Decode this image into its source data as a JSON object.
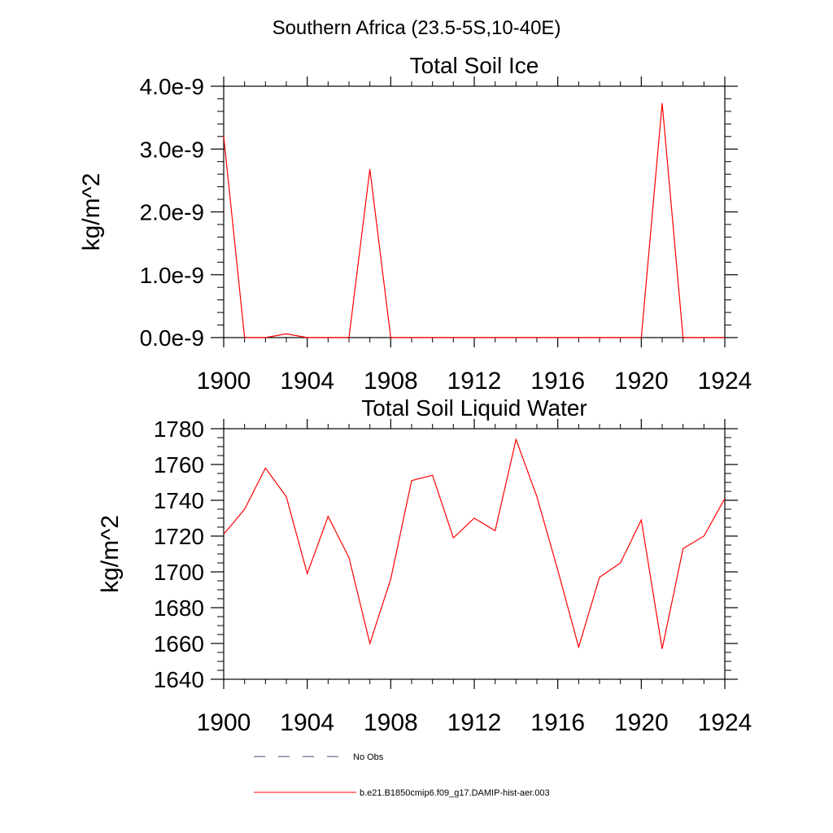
{
  "figure": {
    "title": "Southern Africa (23.5-5S,10-40E)"
  },
  "colors": {
    "model": "#ff0000",
    "obs": "#404080",
    "axis": "#000000"
  },
  "legend": {
    "obs_label": "No Obs",
    "model_label": "b.e21.B1850cmip6.f09_g17.DAMIP-hist-aer.003"
  },
  "chart_data": [
    {
      "type": "line",
      "title": "Total Soil Ice",
      "xlabel": "",
      "ylabel": "kg/m^2",
      "xlim": [
        1900,
        1924
      ],
      "ylim": [
        0,
        4e-09
      ],
      "xticks": [
        1900,
        1904,
        1908,
        1912,
        1916,
        1920,
        1924
      ],
      "yticks": [
        0,
        1e-09,
        2e-09,
        3e-09,
        4e-09
      ],
      "yticklabels": [
        "0.0e-9",
        "1.0e-9",
        "2.0e-9",
        "3.0e-9",
        "4.0e-9"
      ],
      "x": [
        1900,
        1901,
        1902,
        1903,
        1904,
        1905,
        1906,
        1907,
        1908,
        1909,
        1910,
        1911,
        1912,
        1913,
        1914,
        1915,
        1916,
        1917,
        1918,
        1919,
        1920,
        1921,
        1922,
        1923,
        1924
      ],
      "series": [
        {
          "name": "b.e21.B1850cmip6.f09_g17.DAMIP-hist-aer.003",
          "values": [
            3.2e-09,
            0,
            0,
            6e-11,
            0,
            0,
            0,
            2.68e-09,
            0,
            0,
            0,
            0,
            0,
            0,
            0,
            0,
            0,
            0,
            0,
            0,
            0,
            3.73e-09,
            0,
            0,
            0
          ]
        }
      ]
    },
    {
      "type": "line",
      "title": "Total Soil Liquid Water",
      "xlabel": "",
      "ylabel": "kg/m^2",
      "xlim": [
        1900,
        1924
      ],
      "ylim": [
        1640,
        1780
      ],
      "xticks": [
        1900,
        1904,
        1908,
        1912,
        1916,
        1920,
        1924
      ],
      "yticks": [
        1640,
        1660,
        1680,
        1700,
        1720,
        1740,
        1760,
        1780
      ],
      "yticklabels": [
        "1640",
        "1660",
        "1680",
        "1700",
        "1720",
        "1740",
        "1760",
        "1780"
      ],
      "x": [
        1900,
        1901,
        1902,
        1903,
        1904,
        1905,
        1906,
        1907,
        1908,
        1909,
        1910,
        1911,
        1912,
        1913,
        1914,
        1915,
        1916,
        1917,
        1918,
        1919,
        1920,
        1921,
        1922,
        1923,
        1924
      ],
      "series": [
        {
          "name": "b.e21.B1850cmip6.f09_g17.DAMIP-hist-aer.003",
          "values": [
            1721,
            1735,
            1758,
            1742,
            1699,
            1731,
            1708,
            1660,
            1696,
            1751,
            1754,
            1719,
            1730,
            1723,
            1774,
            1742,
            1701,
            1658,
            1697,
            1705,
            1729,
            1657,
            1713,
            1720,
            1741
          ]
        }
      ]
    }
  ]
}
